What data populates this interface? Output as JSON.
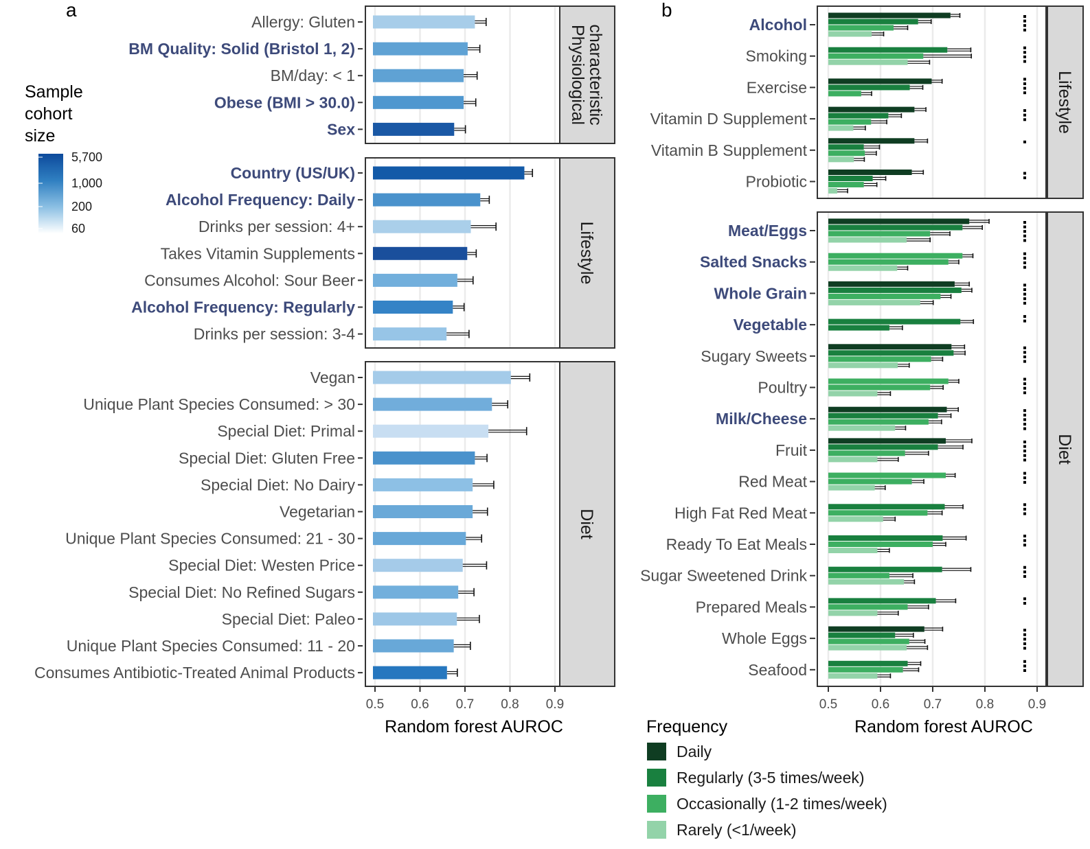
{
  "chart_data": [
    {
      "panel": "a",
      "type": "bar",
      "orientation": "horizontal",
      "xlabel": "Random forest AUROC",
      "xlim": [
        0.5,
        0.9
      ],
      "xticks": [
        "0.5",
        "0.6",
        "0.7",
        "0.8",
        "0.9"
      ],
      "color_legend": {
        "title_lines": [
          "Sample",
          "cohort",
          "size"
        ],
        "tick_labels": [
          "5,700",
          "1,000",
          "200",
          "60"
        ],
        "colors": [
          "#0d4a9c",
          "#2f7fc1",
          "#8bbfe3",
          "#ffffff"
        ]
      },
      "facets": [
        {
          "strip_lines": [
            "Physiological",
            "characteristic"
          ],
          "bars": [
            {
              "label": "Allergy: Gluten",
              "bold": false,
              "value": 0.722,
              "err": 0.025,
              "color": "#a7cde9"
            },
            {
              "label": "BM Quality: Solid (Bristol 1, 2)",
              "bold": true,
              "value": 0.706,
              "err": 0.027,
              "color": "#5fa2d4"
            },
            {
              "label": "BM/day: < 1",
              "bold": false,
              "value": 0.697,
              "err": 0.03,
              "color": "#5fa2d4"
            },
            {
              "label": "Obese (BMI > 30.0)",
              "bold": true,
              "value": 0.697,
              "err": 0.027,
              "color": "#4f97cf"
            },
            {
              "label": "Sex",
              "bold": true,
              "value": 0.676,
              "err": 0.025,
              "color": "#1a58a5"
            }
          ]
        },
        {
          "strip_lines": [
            "Lifestyle"
          ],
          "bars": [
            {
              "label": "Country (US/UK)",
              "bold": true,
              "value": 0.832,
              "err": 0.018,
              "color": "#135aa8"
            },
            {
              "label": "Alcohol Frequency: Daily",
              "bold": true,
              "value": 0.734,
              "err": 0.02,
              "color": "#4a92cc"
            },
            {
              "label": "Drinks per session: 4+",
              "bold": false,
              "value": 0.713,
              "err": 0.056,
              "color": "#aacfea"
            },
            {
              "label": "Takes Vitamin Supplements",
              "bold": false,
              "value": 0.705,
              "err": 0.02,
              "color": "#1a4f9c"
            },
            {
              "label": "Consumes Alcohol: Sour Beer",
              "bold": false,
              "value": 0.683,
              "err": 0.035,
              "color": "#72afdc"
            },
            {
              "label": "Alcohol Frequency: Regularly",
              "bold": true,
              "value": 0.673,
              "err": 0.025,
              "color": "#3583c6"
            },
            {
              "label": "Drinks per session: 3-4",
              "bold": false,
              "value": 0.659,
              "err": 0.05,
              "color": "#97c5e7"
            }
          ]
        },
        {
          "strip_lines": [
            "Diet"
          ],
          "bars": [
            {
              "label": "Vegan",
              "bold": false,
              "value": 0.802,
              "err": 0.042,
              "color": "#a4cbe9"
            },
            {
              "label": "Unique Plant Species Consumed: > 30",
              "bold": false,
              "value": 0.76,
              "err": 0.035,
              "color": "#71addb"
            },
            {
              "label": "Special Diet: Primal",
              "bold": false,
              "value": 0.752,
              "err": 0.085,
              "color": "#c8def2"
            },
            {
              "label": "Special Diet: Gluten Free",
              "bold": false,
              "value": 0.722,
              "err": 0.027,
              "color": "#4a92cc"
            },
            {
              "label": "Special Diet: No Dairy",
              "bold": false,
              "value": 0.717,
              "err": 0.047,
              "color": "#8dc0e5"
            },
            {
              "label": "Vegetarian",
              "bold": false,
              "value": 0.717,
              "err": 0.033,
              "color": "#6aa9d8"
            },
            {
              "label": "Unique Plant Species Consumed: 21 - 30",
              "bold": false,
              "value": 0.702,
              "err": 0.035,
              "color": "#68a8d8"
            },
            {
              "label": "Special Diet: Westen Price",
              "bold": false,
              "value": 0.695,
              "err": 0.053,
              "color": "#a5cbe9"
            },
            {
              "label": "Special Diet: No Refined Sugars",
              "bold": false,
              "value": 0.685,
              "err": 0.035,
              "color": "#72afdc"
            },
            {
              "label": "Special Diet: Paleo",
              "bold": false,
              "value": 0.682,
              "err": 0.05,
              "color": "#9dc7e7"
            },
            {
              "label": "Unique Plant Species Consumed: 11 - 20",
              "bold": false,
              "value": 0.675,
              "err": 0.037,
              "color": "#68a8d8"
            },
            {
              "label": "Consumes Antibiotic-Treated Animal Products",
              "bold": false,
              "value": 0.66,
              "err": 0.023,
              "color": "#2677bf"
            }
          ]
        }
      ]
    },
    {
      "panel": "b",
      "type": "bar",
      "orientation": "horizontal-grouped",
      "xlabel": "Random forest AUROC",
      "xlim": [
        0.5,
        0.9
      ],
      "xticks": [
        "0.5",
        "0.6",
        "0.7",
        "0.8",
        "0.9"
      ],
      "legend": {
        "title": "Frequency",
        "items": [
          {
            "label": "Daily",
            "color": "#0f3d22"
          },
          {
            "label": "Regularly (3-5 times/week)",
            "color": "#19803f"
          },
          {
            "label": "Occasionally (1-2 times/week)",
            "color": "#3daf61"
          },
          {
            "label": "Rarely (<1/week)",
            "color": "#93d3a9"
          }
        ]
      },
      "facets": [
        {
          "strip_lines": [
            "Lifestyle"
          ],
          "categories": [
            {
              "label": "Alcohol",
              "bold": true,
              "dots": 4,
              "bars": [
                {
                  "freq": 0,
                  "value": 0.734,
                  "err": 0.018
                },
                {
                  "freq": 1,
                  "value": 0.672,
                  "err": 0.025
                },
                {
                  "freq": 2,
                  "value": 0.625,
                  "err": 0.027
                },
                {
                  "freq": 3,
                  "value": 0.583,
                  "err": 0.023
                }
              ]
            },
            {
              "label": "Smoking",
              "bold": false,
              "dots": 4,
              "bars": [
                {
                  "freq": 1,
                  "value": 0.728,
                  "err": 0.045
                },
                {
                  "freq": 2,
                  "value": 0.682,
                  "err": 0.092
                },
                {
                  "freq": 3,
                  "value": 0.652,
                  "err": 0.042
                }
              ]
            },
            {
              "label": "Exercise",
              "bold": false,
              "dots": 4,
              "bars": [
                {
                  "freq": 0,
                  "value": 0.698,
                  "err": 0.02
                },
                {
                  "freq": 1,
                  "value": 0.656,
                  "err": 0.025
                },
                {
                  "freq": 2,
                  "value": 0.563,
                  "err": 0.02
                }
              ]
            },
            {
              "label": "Vitamin D Supplement",
              "bold": false,
              "dots": 3,
              "bars": [
                {
                  "freq": 0,
                  "value": 0.665,
                  "err": 0.022
                },
                {
                  "freq": 1,
                  "value": 0.615,
                  "err": 0.025
                },
                {
                  "freq": 2,
                  "value": 0.582,
                  "err": 0.03
                },
                {
                  "freq": 3,
                  "value": 0.548,
                  "err": 0.023
                }
              ]
            },
            {
              "label": "Vitamin B Supplement",
              "bold": false,
              "dots": 1,
              "bars": [
                {
                  "freq": 0,
                  "value": 0.665,
                  "err": 0.025
                },
                {
                  "freq": 1,
                  "value": 0.568,
                  "err": 0.03
                },
                {
                  "freq": 2,
                  "value": 0.57,
                  "err": 0.022
                },
                {
                  "freq": 3,
                  "value": 0.549,
                  "err": 0.02
                }
              ]
            },
            {
              "label": "Probiotic",
              "bold": false,
              "dots": 2,
              "bars": [
                {
                  "freq": 0,
                  "value": 0.66,
                  "err": 0.022
                },
                {
                  "freq": 1,
                  "value": 0.585,
                  "err": 0.025
                },
                {
                  "freq": 2,
                  "value": 0.568,
                  "err": 0.025
                },
                {
                  "freq": 3,
                  "value": 0.517,
                  "err": 0.02
                }
              ]
            }
          ]
        },
        {
          "strip_lines": [
            "Diet"
          ],
          "categories": [
            {
              "label": "Meat/Eggs",
              "bold": true,
              "dots": 5,
              "bars": [
                {
                  "freq": 0,
                  "value": 0.77,
                  "err": 0.038
                },
                {
                  "freq": 1,
                  "value": 0.757,
                  "err": 0.038
                },
                {
                  "freq": 2,
                  "value": 0.695,
                  "err": 0.038
                },
                {
                  "freq": 3,
                  "value": 0.65,
                  "err": 0.045
                }
              ]
            },
            {
              "label": "Salted Snacks",
              "bold": true,
              "dots": 4,
              "bars": [
                {
                  "freq": 2,
                  "value": 0.757,
                  "err": 0.02
                },
                {
                  "freq": 2,
                  "value": 0.73,
                  "err": 0.02
                },
                {
                  "freq": 3,
                  "value": 0.632,
                  "err": 0.02
                }
              ]
            },
            {
              "label": "Whole Grain",
              "bold": true,
              "dots": 5,
              "bars": [
                {
                  "freq": 0,
                  "value": 0.742,
                  "err": 0.028
                },
                {
                  "freq": 1,
                  "value": 0.755,
                  "err": 0.02
                },
                {
                  "freq": 2,
                  "value": 0.715,
                  "err": 0.02
                },
                {
                  "freq": 3,
                  "value": 0.676,
                  "err": 0.025
                }
              ]
            },
            {
              "label": "Vegetable",
              "bold": true,
              "dots": 2,
              "bars": [
                {
                  "freq": 1,
                  "value": 0.753,
                  "err": 0.025
                },
                {
                  "freq": 1,
                  "value": 0.617,
                  "err": 0.025
                }
              ]
            },
            {
              "label": "Sugary Sweets",
              "bold": false,
              "dots": 4,
              "bars": [
                {
                  "freq": 0,
                  "value": 0.736,
                  "err": 0.025
                },
                {
                  "freq": 1,
                  "value": 0.74,
                  "err": 0.022
                },
                {
                  "freq": 2,
                  "value": 0.697,
                  "err": 0.022
                },
                {
                  "freq": 3,
                  "value": 0.633,
                  "err": 0.022
                }
              ]
            },
            {
              "label": "Poultry",
              "bold": false,
              "dots": 4,
              "bars": [
                {
                  "freq": 2,
                  "value": 0.73,
                  "err": 0.02
                },
                {
                  "freq": 2,
                  "value": 0.695,
                  "err": 0.025
                },
                {
                  "freq": 3,
                  "value": 0.594,
                  "err": 0.025
                }
              ]
            },
            {
              "label": "Milk/Cheese",
              "bold": true,
              "dots": 5,
              "bars": [
                {
                  "freq": 0,
                  "value": 0.727,
                  "err": 0.022
                },
                {
                  "freq": 1,
                  "value": 0.71,
                  "err": 0.025
                },
                {
                  "freq": 2,
                  "value": 0.692,
                  "err": 0.025
                },
                {
                  "freq": 3,
                  "value": 0.628,
                  "err": 0.02
                }
              ]
            },
            {
              "label": "Fruit",
              "bold": false,
              "dots": 5,
              "bars": [
                {
                  "freq": 0,
                  "value": 0.725,
                  "err": 0.05
                },
                {
                  "freq": 1,
                  "value": 0.71,
                  "err": 0.048
                },
                {
                  "freq": 2,
                  "value": 0.647,
                  "err": 0.045
                },
                {
                  "freq": 3,
                  "value": 0.594,
                  "err": 0.04
                }
              ]
            },
            {
              "label": "Red Meat",
              "bold": false,
              "dots": 3,
              "bars": [
                {
                  "freq": 2,
                  "value": 0.725,
                  "err": 0.018
                },
                {
                  "freq": 2,
                  "value": 0.66,
                  "err": 0.023
                },
                {
                  "freq": 3,
                  "value": 0.589,
                  "err": 0.02
                }
              ]
            },
            {
              "label": "High Fat Red Meat",
              "bold": false,
              "dots": 3,
              "bars": [
                {
                  "freq": 1,
                  "value": 0.723,
                  "err": 0.035
                },
                {
                  "freq": 2,
                  "value": 0.69,
                  "err": 0.028
                },
                {
                  "freq": 3,
                  "value": 0.605,
                  "err": 0.023
                }
              ]
            },
            {
              "label": "Ready To Eat Meals",
              "bold": false,
              "dots": 3,
              "bars": [
                {
                  "freq": 1,
                  "value": 0.719,
                  "err": 0.045
                },
                {
                  "freq": 2,
                  "value": 0.7,
                  "err": 0.025
                },
                {
                  "freq": 3,
                  "value": 0.594,
                  "err": 0.023
                }
              ]
            },
            {
              "label": "Sugar Sweetened Drink",
              "bold": false,
              "dots": 3,
              "bars": [
                {
                  "freq": 1,
                  "value": 0.718,
                  "err": 0.055
                },
                {
                  "freq": 2,
                  "value": 0.617,
                  "err": 0.045
                },
                {
                  "freq": 3,
                  "value": 0.645,
                  "err": 0.02
                }
              ]
            },
            {
              "label": "Prepared Meals",
              "bold": false,
              "dots": 2,
              "bars": [
                {
                  "freq": 1,
                  "value": 0.706,
                  "err": 0.038
                },
                {
                  "freq": 2,
                  "value": 0.652,
                  "err": 0.04
                },
                {
                  "freq": 3,
                  "value": 0.594,
                  "err": 0.04
                }
              ]
            },
            {
              "label": "Whole Eggs",
              "bold": false,
              "dots": 5,
              "bars": [
                {
                  "freq": 0,
                  "value": 0.684,
                  "err": 0.035
                },
                {
                  "freq": 1,
                  "value": 0.628,
                  "err": 0.035
                },
                {
                  "freq": 2,
                  "value": 0.655,
                  "err": 0.03
                },
                {
                  "freq": 3,
                  "value": 0.65,
                  "err": 0.04
                }
              ]
            },
            {
              "label": "Seafood",
              "bold": false,
              "dots": 3,
              "bars": [
                {
                  "freq": 1,
                  "value": 0.652,
                  "err": 0.025
                },
                {
                  "freq": 2,
                  "value": 0.643,
                  "err": 0.03
                },
                {
                  "freq": 3,
                  "value": 0.594,
                  "err": 0.025
                }
              ]
            }
          ]
        }
      ]
    }
  ],
  "panel_labels": {
    "a": "a",
    "b": "b"
  }
}
